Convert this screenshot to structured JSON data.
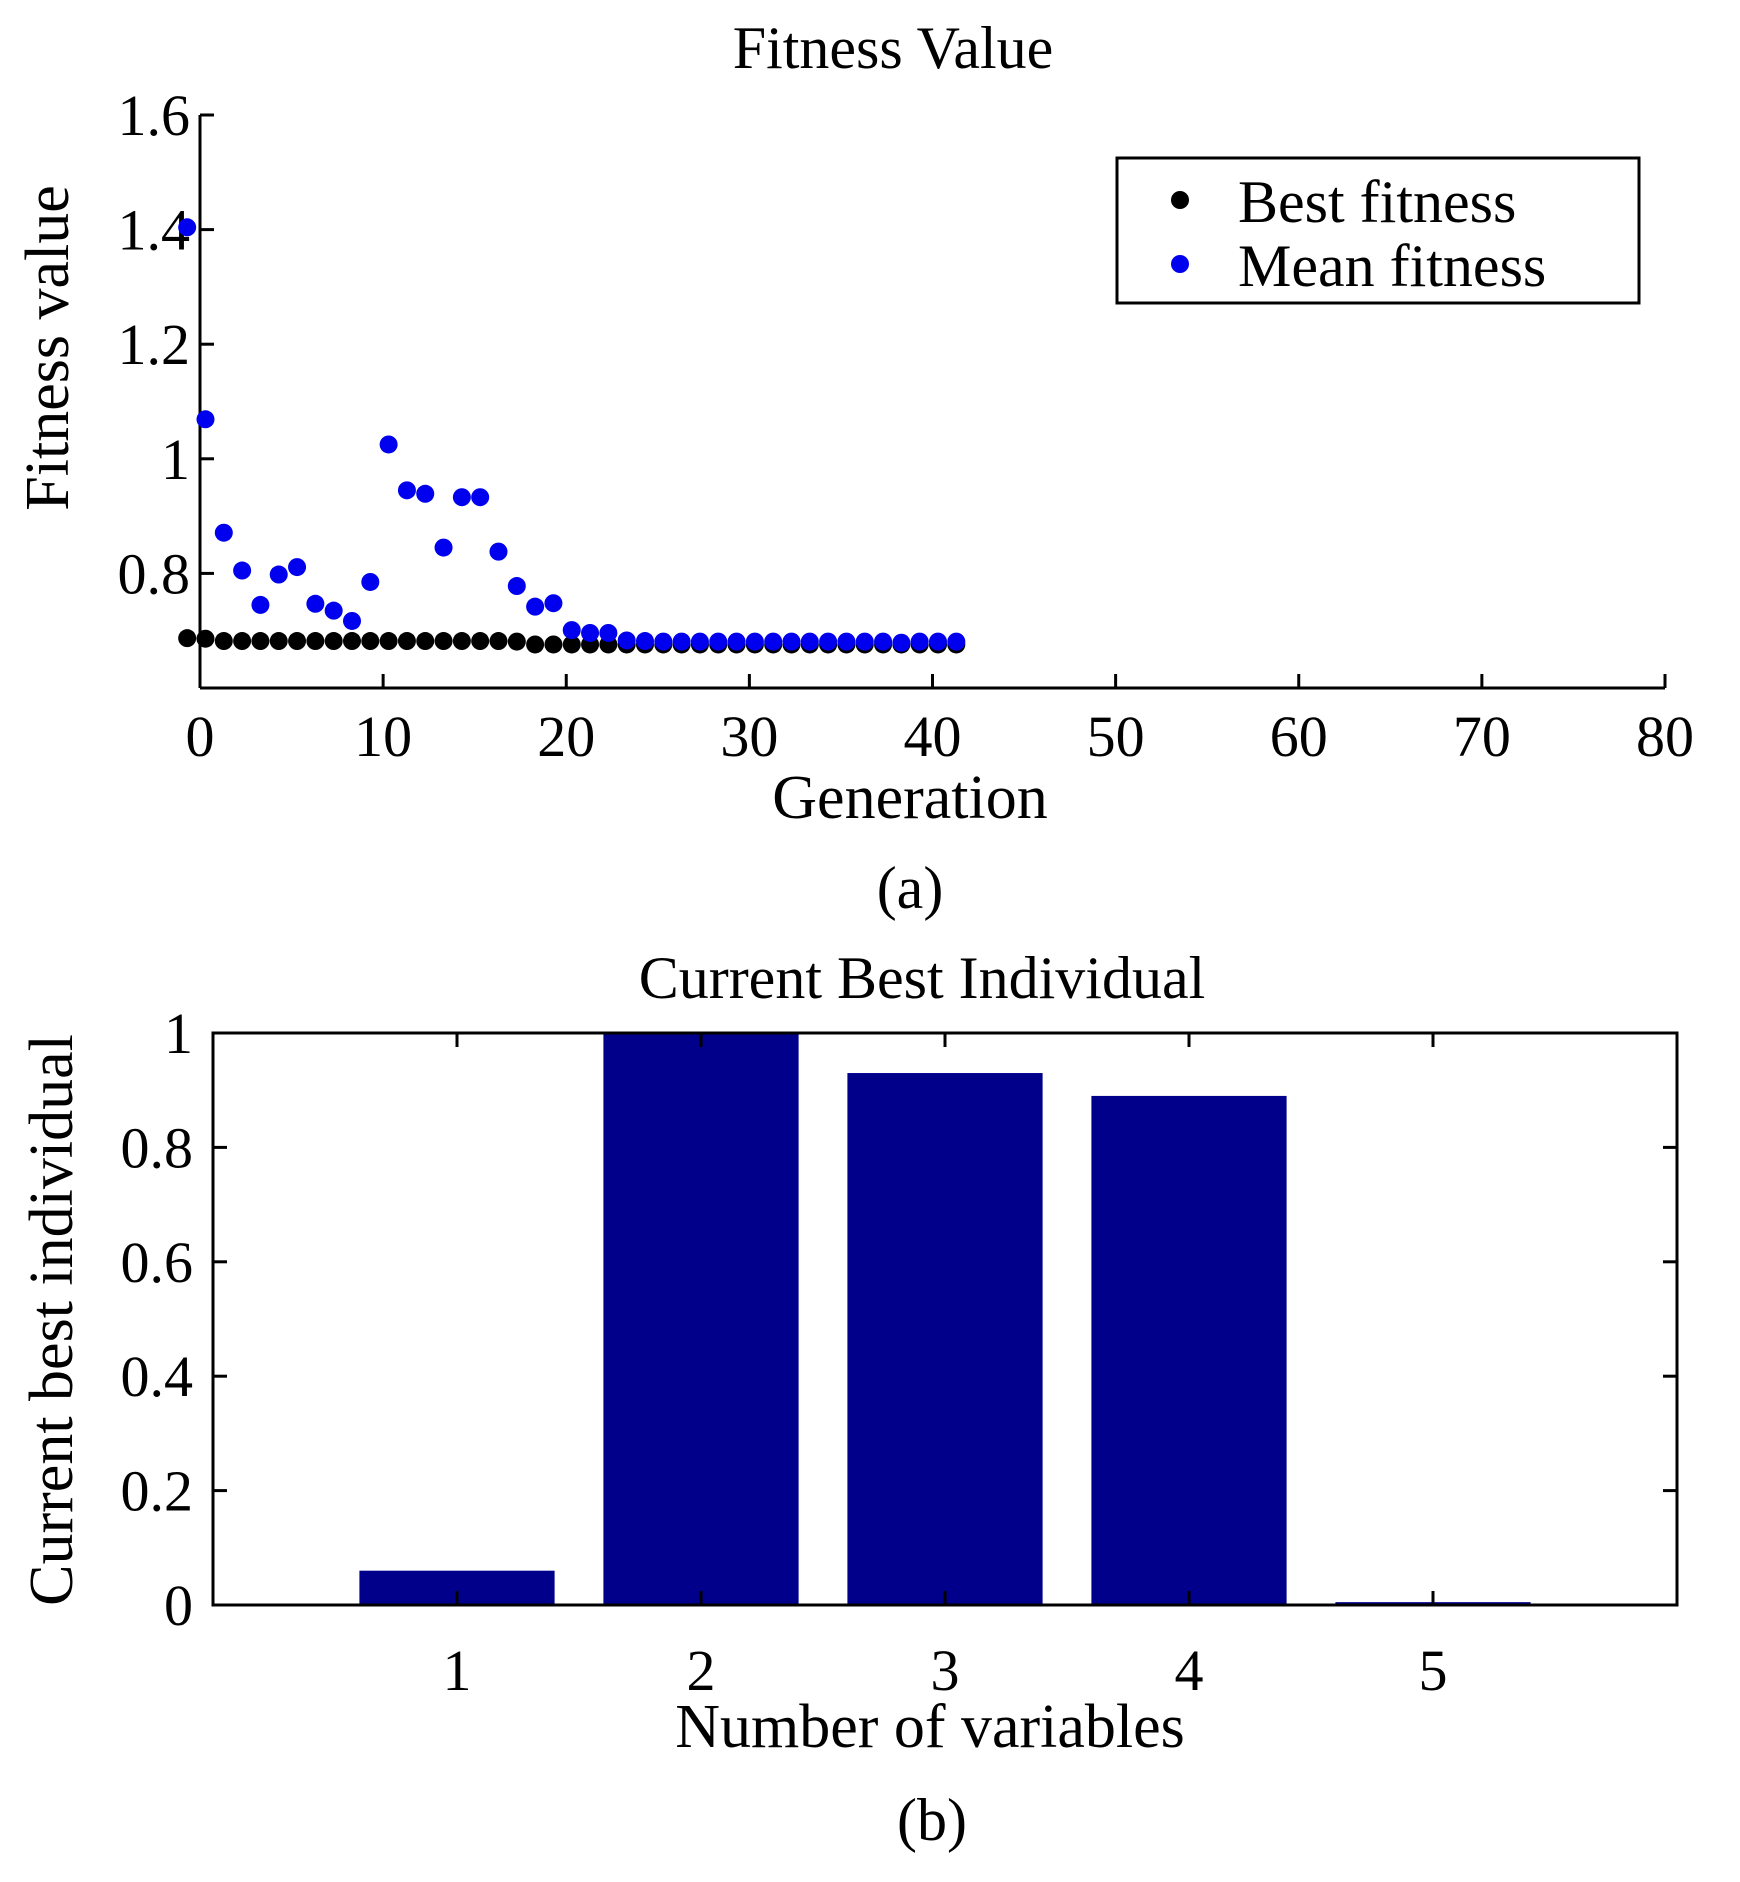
{
  "chart_data": [
    {
      "type": "scatter",
      "title": "Fitness Value",
      "xlabel": "Generation",
      "ylabel": "Fitness value",
      "caption": "(a)",
      "xlim": [
        0,
        80
      ],
      "ylim": [
        0.6,
        1.6
      ],
      "xticks": [
        0,
        10,
        20,
        30,
        40,
        50,
        60,
        70,
        80
      ],
      "yticks": [
        0.8,
        1,
        1.2,
        1.4,
        1.6
      ],
      "legend_position": "top-right",
      "grid": false,
      "series": [
        {
          "name": "Best fitness",
          "color": "#000000",
          "points": [
            [
              -0.7,
              0.687
            ],
            [
              0.3,
              0.686
            ],
            [
              1.3,
              0.682
            ],
            [
              2.3,
              0.682
            ],
            [
              3.3,
              0.682
            ],
            [
              4.3,
              0.682
            ],
            [
              5.3,
              0.682
            ],
            [
              6.3,
              0.682
            ],
            [
              7.3,
              0.682
            ],
            [
              8.3,
              0.682
            ],
            [
              9.3,
              0.682
            ],
            [
              10.3,
              0.682
            ],
            [
              11.3,
              0.682
            ],
            [
              12.3,
              0.682
            ],
            [
              13.3,
              0.682
            ],
            [
              14.3,
              0.682
            ],
            [
              15.3,
              0.682
            ],
            [
              16.3,
              0.682
            ],
            [
              17.3,
              0.681
            ],
            [
              18.3,
              0.676
            ],
            [
              19.3,
              0.676
            ],
            [
              20.3,
              0.676
            ],
            [
              21.3,
              0.676
            ],
            [
              22.3,
              0.676
            ],
            [
              23.3,
              0.676
            ],
            [
              24.3,
              0.676
            ],
            [
              25.3,
              0.676
            ],
            [
              26.3,
              0.676
            ],
            [
              27.3,
              0.676
            ],
            [
              28.3,
              0.676
            ],
            [
              29.3,
              0.676
            ],
            [
              30.3,
              0.676
            ],
            [
              31.3,
              0.676
            ],
            [
              32.3,
              0.676
            ],
            [
              33.3,
              0.676
            ],
            [
              34.3,
              0.676
            ],
            [
              35.3,
              0.676
            ],
            [
              36.3,
              0.676
            ],
            [
              37.3,
              0.676
            ],
            [
              38.3,
              0.676
            ],
            [
              39.3,
              0.676
            ],
            [
              40.3,
              0.676
            ],
            [
              41.3,
              0.676
            ]
          ]
        },
        {
          "name": "Mean fitness",
          "color": "#0000ee",
          "points": [
            [
              -0.7,
              1.404
            ],
            [
              0.3,
              1.069
            ],
            [
              1.3,
              0.871
            ],
            [
              2.3,
              0.805
            ],
            [
              3.3,
              0.745
            ],
            [
              4.3,
              0.798
            ],
            [
              5.3,
              0.811
            ],
            [
              6.3,
              0.747
            ],
            [
              7.3,
              0.735
            ],
            [
              8.3,
              0.717
            ],
            [
              9.3,
              0.785
            ],
            [
              10.3,
              1.025
            ],
            [
              11.3,
              0.945
            ],
            [
              12.3,
              0.939
            ],
            [
              13.3,
              0.845
            ],
            [
              14.3,
              0.933
            ],
            [
              15.3,
              0.933
            ],
            [
              16.3,
              0.838
            ],
            [
              17.3,
              0.778
            ],
            [
              18.3,
              0.742
            ],
            [
              19.3,
              0.748
            ],
            [
              20.3,
              0.701
            ],
            [
              21.3,
              0.696
            ],
            [
              22.3,
              0.696
            ],
            [
              23.3,
              0.683
            ],
            [
              24.3,
              0.682
            ],
            [
              25.3,
              0.681
            ],
            [
              26.3,
              0.681
            ],
            [
              27.3,
              0.681
            ],
            [
              28.3,
              0.681
            ],
            [
              29.3,
              0.681
            ],
            [
              30.3,
              0.681
            ],
            [
              31.3,
              0.681
            ],
            [
              32.3,
              0.681
            ],
            [
              33.3,
              0.681
            ],
            [
              34.3,
              0.681
            ],
            [
              35.3,
              0.681
            ],
            [
              36.3,
              0.681
            ],
            [
              37.3,
              0.681
            ],
            [
              38.3,
              0.679
            ],
            [
              39.3,
              0.681
            ],
            [
              40.3,
              0.681
            ],
            [
              41.3,
              0.681
            ]
          ]
        }
      ]
    },
    {
      "type": "bar",
      "title": "Current Best Individual",
      "xlabel": "Number of variables",
      "ylabel": "Current best individual",
      "caption": "(b)",
      "categories": [
        "1",
        "2",
        "3",
        "4",
        "5"
      ],
      "values": [
        0.06,
        1.0,
        0.93,
        0.89,
        0.005
      ],
      "xlim": [
        0,
        6
      ],
      "ylim": [
        0,
        1
      ],
      "yticks": [
        "0",
        "0.2",
        "0.4",
        "0.6",
        "0.8",
        "1"
      ],
      "bar_color": "#00008b",
      "grid": false
    }
  ]
}
